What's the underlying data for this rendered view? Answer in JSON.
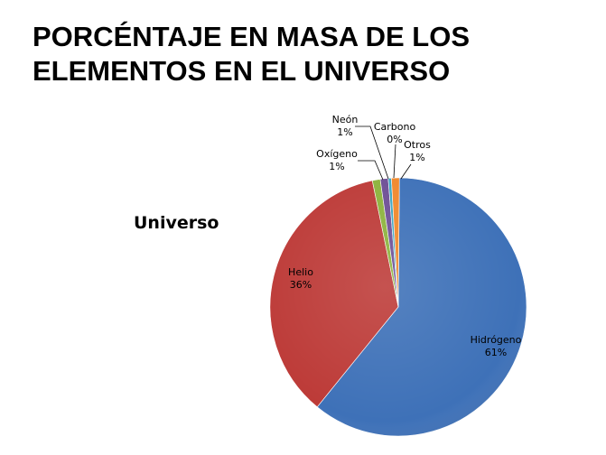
{
  "header": {
    "title_line1": "PORCÉNTAJE EN MASA DE LOS",
    "title_line2": "ELEMENTOS EN EL UNIVERSO"
  },
  "chart_data": {
    "type": "pie",
    "subtitle": "Universo",
    "slices": [
      {
        "name": "Hidrógeno",
        "value": 61,
        "label": "61%",
        "color": "#3E71B8"
      },
      {
        "name": "Helio",
        "value": 36,
        "label": "36%",
        "color": "#BD3B38"
      },
      {
        "name": "Oxígeno",
        "value": 1,
        "label": "1%",
        "color": "#8DB33D"
      },
      {
        "name": "Neón",
        "value": 1,
        "label": "1%",
        "color": "#6E4F96"
      },
      {
        "name": "Carbono",
        "value": 0,
        "label": "0%",
        "color": "#3BA6C1"
      },
      {
        "name": "Otros",
        "value": 1,
        "label": "1%",
        "color": "#F0882C"
      }
    ]
  }
}
